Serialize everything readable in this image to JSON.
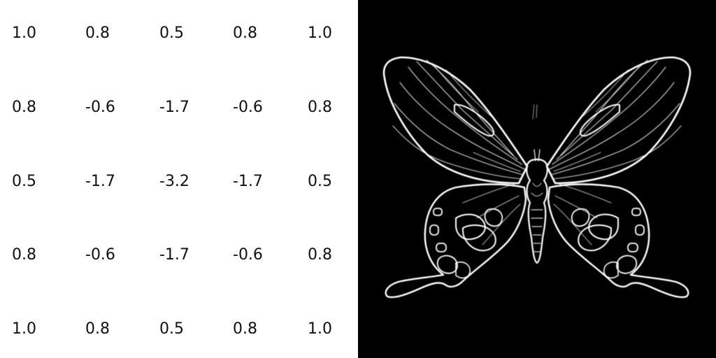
{
  "kernel": {
    "rows": [
      [
        "1.0",
        "0.8",
        "0.5",
        "0.8",
        "1.0"
      ],
      [
        "0.8",
        "-0.6",
        "-1.7",
        "-0.6",
        "0.8"
      ],
      [
        "0.5",
        "-1.7",
        "-3.2",
        "-1.7",
        "0.5"
      ],
      [
        "0.8",
        "-0.6",
        "-1.7",
        "-0.6",
        "0.8"
      ],
      [
        "1.0",
        "0.8",
        "0.5",
        "0.8",
        "1.0"
      ]
    ]
  },
  "filtered_image": {
    "subject": "butterfly-edge-map",
    "background_color": "#000000",
    "edge_color": "#ffffff"
  }
}
